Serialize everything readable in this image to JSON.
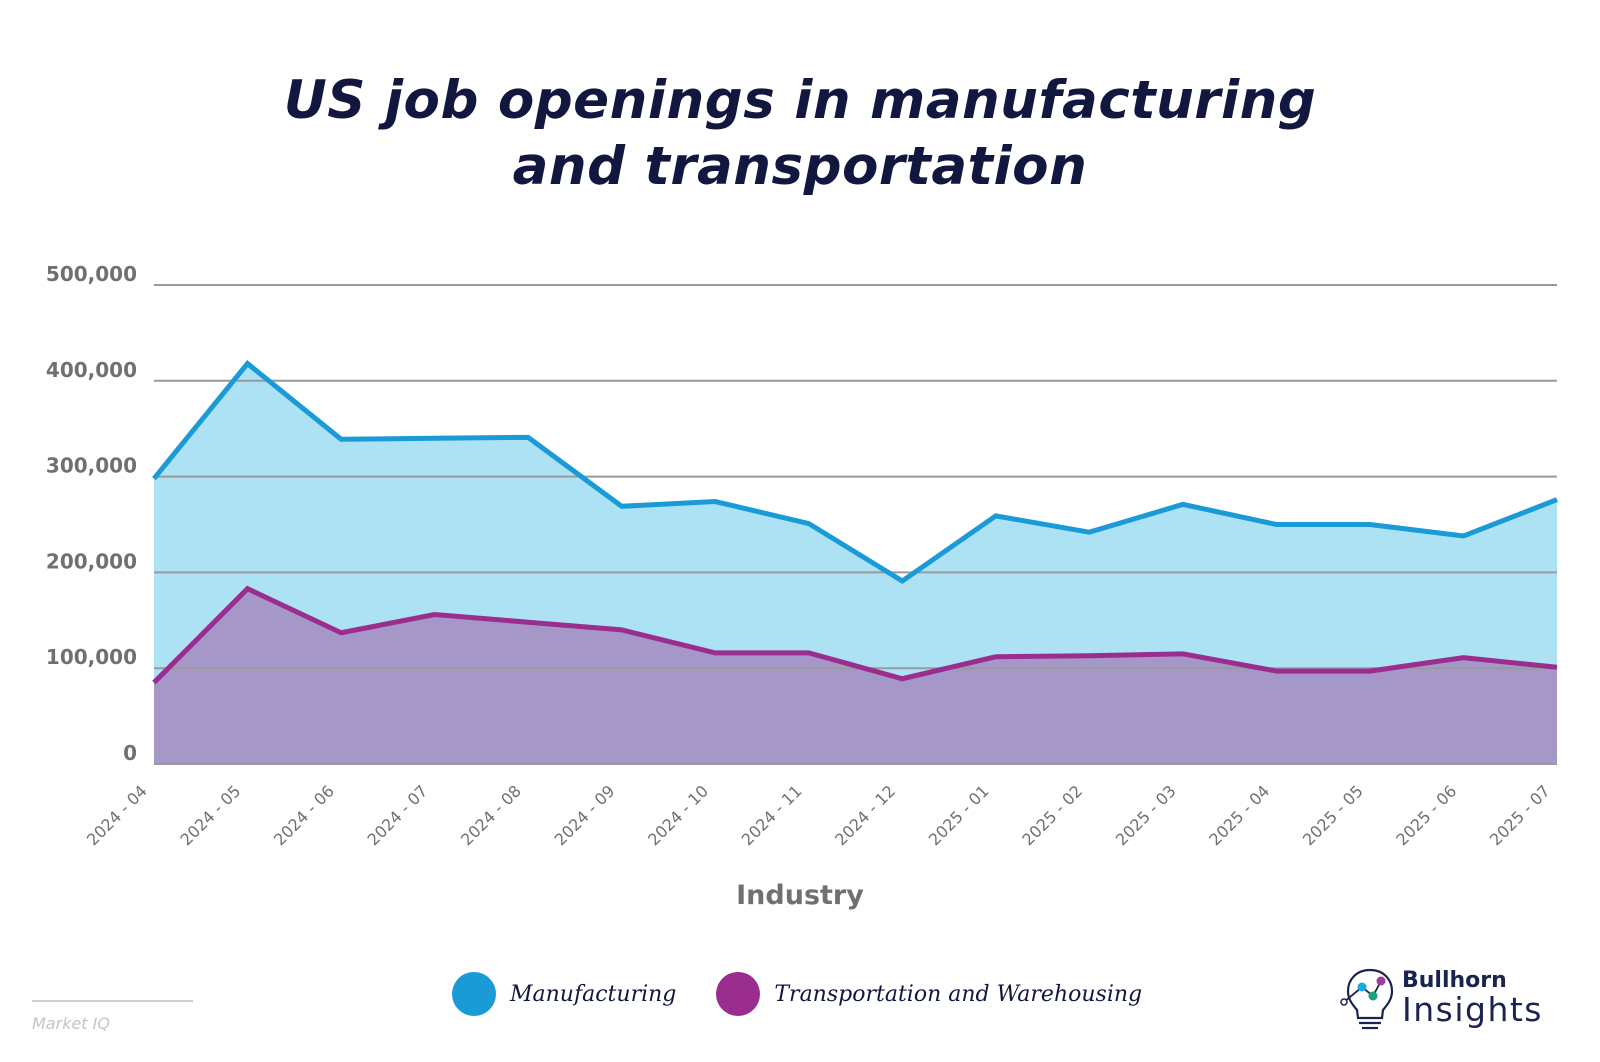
{
  "colors": {
    "title": "#11173f",
    "manufacturing_line": "#1a9ad6",
    "manufacturing_fill": "#ade2f4",
    "transport_line": "#9b2d8f",
    "transport_fill": "#a598c8",
    "grid": "#9a9a9a",
    "axis_text": "#707070"
  },
  "chart_data": {
    "type": "area",
    "title": "US job openings in manufacturing and transportation",
    "title_lines": [
      "US job openings in manufacturing",
      "and transportation"
    ],
    "xlabel": "Industry",
    "ylabel": "",
    "ylim": [
      0,
      500000
    ],
    "yticks": [
      0,
      100000,
      200000,
      300000,
      400000,
      500000
    ],
    "ytick_labels": [
      "0",
      "100,000",
      "200,000",
      "300,000",
      "400,000",
      "500,000"
    ],
    "grid": true,
    "legend_position": "bottom-center",
    "categories": [
      "2024 - 04",
      "2024 - 05",
      "2024 - 06",
      "2024 - 07",
      "2024 - 08",
      "2024 - 09",
      "2024 - 10",
      "2024 - 11",
      "2024 - 12",
      "2025 - 01",
      "2025 - 02",
      "2025 - 03",
      "2025 - 04",
      "2025 - 05",
      "2025 - 06",
      "2025 - 07"
    ],
    "series": [
      {
        "name": "Manufacturing",
        "values": [
          298000,
          418000,
          339000,
          340000,
          341000,
          269000,
          274000,
          251000,
          191000,
          259000,
          242000,
          271000,
          250000,
          250000,
          238000,
          276000
        ]
      },
      {
        "name": "Transportation and Warehousing",
        "values": [
          85000,
          183000,
          137000,
          156000,
          148000,
          140000,
          116000,
          116000,
          89000,
          112000,
          113000,
          115000,
          97000,
          97000,
          111000,
          101000
        ]
      }
    ]
  },
  "legend": {
    "items": [
      {
        "label": "Manufacturing",
        "color": "#1a9ad6"
      },
      {
        "label": "Transportation and Warehousing",
        "color": "#9b2d8f"
      }
    ]
  },
  "footer": {
    "source": "Market IQ",
    "logo_line1": "Bullhorn",
    "logo_line2": "Insights"
  }
}
